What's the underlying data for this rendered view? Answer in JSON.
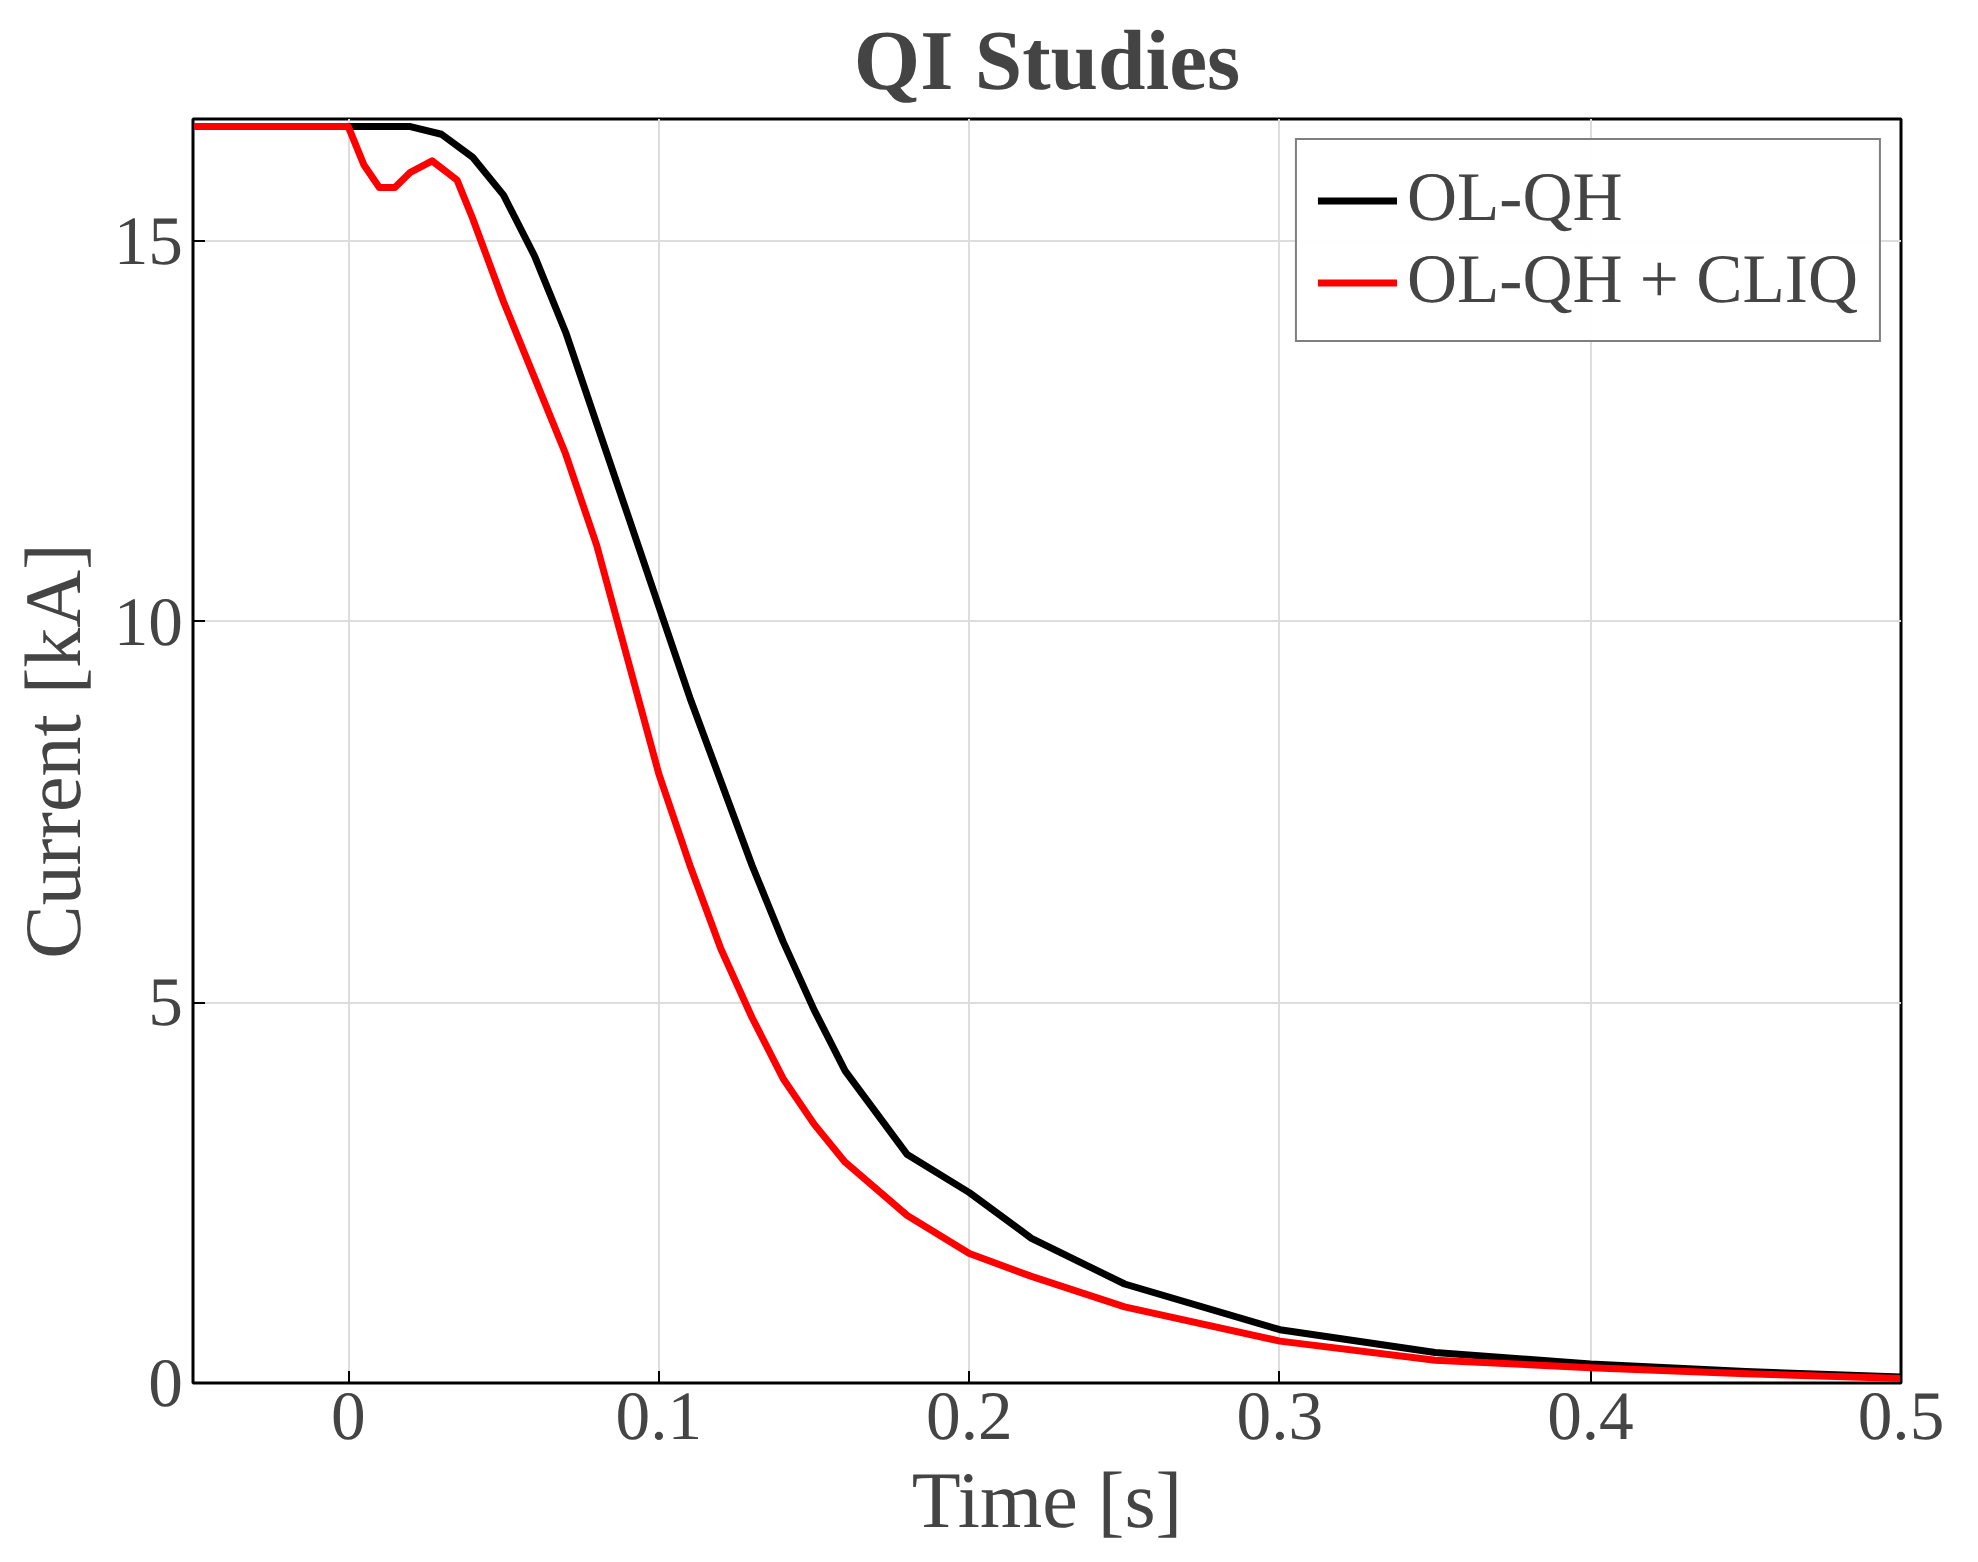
{
  "chart_data": {
    "type": "line",
    "title": "QI Studies",
    "xlabel": "Time [s]",
    "ylabel": "Current [kA]",
    "xlim": [
      -0.05,
      0.5
    ],
    "xticks": [
      0,
      0.1,
      0.2,
      0.3,
      0.4,
      0.5
    ],
    "ylim": [
      0,
      16.6
    ],
    "yticks": [
      0,
      5,
      10,
      15
    ],
    "grid": true,
    "legend": "top right",
    "line_style": "solid",
    "marker": "none",
    "series": [
      {
        "name": "OL-QH",
        "color": "#000000",
        "x": [
          -0.05,
          0.02,
          0.03,
          0.04,
          0.05,
          0.06,
          0.07,
          0.08,
          0.09,
          0.1,
          0.11,
          0.12,
          0.13,
          0.14,
          0.15,
          0.16,
          0.18,
          0.2,
          0.22,
          0.25,
          0.3,
          0.35,
          0.4,
          0.45,
          0.5
        ],
        "values": [
          16.5,
          16.5,
          16.4,
          16.1,
          15.6,
          14.8,
          13.8,
          12.6,
          11.4,
          10.2,
          9.0,
          7.9,
          6.8,
          5.8,
          4.9,
          4.1,
          3.0,
          2.5,
          1.9,
          1.3,
          0.7,
          0.4,
          0.25,
          0.15,
          0.08
        ]
      },
      {
        "name": "OL-QH + CLIQ",
        "color": "#ff0000",
        "x": [
          -0.05,
          0,
          0.005,
          0.01,
          0.015,
          0.02,
          0.027,
          0.035,
          0.04,
          0.05,
          0.06,
          0.07,
          0.08,
          0.09,
          0.1,
          0.11,
          0.12,
          0.13,
          0.14,
          0.15,
          0.16,
          0.18,
          0.2,
          0.22,
          0.25,
          0.3,
          0.35,
          0.4,
          0.45,
          0.5
        ],
        "values": [
          16.5,
          16.5,
          16.0,
          15.7,
          15.7,
          15.9,
          16.05,
          15.8,
          15.3,
          14.2,
          13.2,
          12.2,
          11.0,
          9.5,
          8.0,
          6.8,
          5.7,
          4.8,
          4.0,
          3.4,
          2.9,
          2.2,
          1.7,
          1.4,
          1.0,
          0.55,
          0.3,
          0.2,
          0.12,
          0.06
        ]
      }
    ]
  }
}
